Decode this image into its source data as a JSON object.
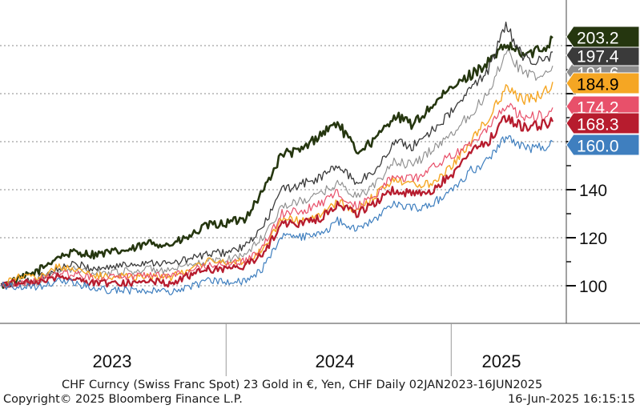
{
  "chart_data": {
    "type": "line",
    "x_range": [
      "2023-01-02",
      "2025-06-16"
    ],
    "ylim": [
      88,
      215
    ],
    "y_ticks": [
      100,
      120,
      140
    ],
    "y_tick_labels": [
      "100",
      "120",
      "140"
    ],
    "grid": true,
    "x_year_labels": [
      "2023",
      "2024",
      "2025"
    ],
    "series": [
      {
        "color": "#25360f",
        "last_value_label": "203.2",
        "points": [
          [
            "2023-01-02",
            100
          ],
          [
            "2023-02-01",
            103
          ],
          [
            "2023-03-01",
            106
          ],
          [
            "2023-04-03",
            112
          ],
          [
            "2023-05-02",
            114
          ],
          [
            "2023-06-01",
            113
          ],
          [
            "2023-07-03",
            114
          ],
          [
            "2023-08-01",
            115
          ],
          [
            "2023-09-01",
            118
          ],
          [
            "2023-10-02",
            117
          ],
          [
            "2023-11-01",
            120
          ],
          [
            "2023-12-01",
            125
          ],
          [
            "2024-01-02",
            126
          ],
          [
            "2024-02-01",
            128
          ],
          [
            "2024-03-01",
            139
          ],
          [
            "2024-04-02",
            155
          ],
          [
            "2024-05-01",
            156
          ],
          [
            "2024-06-03",
            163
          ],
          [
            "2024-07-01",
            168
          ],
          [
            "2024-08-01",
            156
          ],
          [
            "2024-09-02",
            161
          ],
          [
            "2024-10-01",
            171
          ],
          [
            "2024-11-01",
            167
          ],
          [
            "2024-12-02",
            175
          ],
          [
            "2025-01-02",
            182
          ],
          [
            "2025-02-03",
            188
          ],
          [
            "2025-03-03",
            193
          ],
          [
            "2025-04-01",
            200
          ],
          [
            "2025-05-01",
            196
          ],
          [
            "2025-06-02",
            199
          ],
          [
            "2025-06-16",
            203.2
          ]
        ]
      },
      {
        "color": "#3a3a3a",
        "last_value_label": "197.4",
        "points": [
          [
            "2023-01-02",
            100
          ],
          [
            "2023-02-01",
            101
          ],
          [
            "2023-03-01",
            103
          ],
          [
            "2023-04-03",
            107
          ],
          [
            "2023-05-02",
            109
          ],
          [
            "2023-06-01",
            107
          ],
          [
            "2023-07-03",
            108
          ],
          [
            "2023-08-01",
            109
          ],
          [
            "2023-09-01",
            110
          ],
          [
            "2023-10-02",
            109
          ],
          [
            "2023-11-01",
            111
          ],
          [
            "2023-12-01",
            113
          ],
          [
            "2024-01-02",
            114
          ],
          [
            "2024-02-01",
            116
          ],
          [
            "2024-03-01",
            124
          ],
          [
            "2024-04-02",
            140
          ],
          [
            "2024-05-01",
            142
          ],
          [
            "2024-06-03",
            145
          ],
          [
            "2024-07-01",
            150
          ],
          [
            "2024-08-01",
            143
          ],
          [
            "2024-09-02",
            148
          ],
          [
            "2024-10-01",
            160
          ],
          [
            "2024-11-01",
            158
          ],
          [
            "2024-12-02",
            165
          ],
          [
            "2025-01-02",
            172
          ],
          [
            "2025-02-03",
            182
          ],
          [
            "2025-03-03",
            190
          ],
          [
            "2025-04-01",
            208
          ],
          [
            "2025-05-01",
            195
          ],
          [
            "2025-06-02",
            193
          ],
          [
            "2025-06-16",
            197.4
          ]
        ]
      },
      {
        "color": "#8c8c8c",
        "last_value_label": "191.6",
        "points": [
          [
            "2023-01-02",
            100
          ],
          [
            "2023-02-01",
            101
          ],
          [
            "2023-03-01",
            102
          ],
          [
            "2023-04-03",
            106
          ],
          [
            "2023-05-02",
            107
          ],
          [
            "2023-06-01",
            105
          ],
          [
            "2023-07-03",
            106
          ],
          [
            "2023-08-01",
            106
          ],
          [
            "2023-09-01",
            107
          ],
          [
            "2023-10-02",
            106
          ],
          [
            "2023-11-01",
            108
          ],
          [
            "2023-12-01",
            110
          ],
          [
            "2024-01-02",
            111
          ],
          [
            "2024-02-01",
            113
          ],
          [
            "2024-03-01",
            120
          ],
          [
            "2024-04-02",
            133
          ],
          [
            "2024-05-01",
            135
          ],
          [
            "2024-06-03",
            138
          ],
          [
            "2024-07-01",
            143
          ],
          [
            "2024-08-01",
            137
          ],
          [
            "2024-09-02",
            142
          ],
          [
            "2024-10-01",
            152
          ],
          [
            "2024-11-01",
            150
          ],
          [
            "2024-12-02",
            157
          ],
          [
            "2025-01-02",
            163
          ],
          [
            "2025-02-03",
            172
          ],
          [
            "2025-03-03",
            180
          ],
          [
            "2025-04-01",
            198
          ],
          [
            "2025-05-01",
            188
          ],
          [
            "2025-06-02",
            187
          ],
          [
            "2025-06-16",
            191.6
          ]
        ]
      },
      {
        "color": "#f5a623",
        "last_value_label": "184.9",
        "points": [
          [
            "2023-01-02",
            100
          ],
          [
            "2023-02-01",
            104
          ],
          [
            "2023-03-01",
            103
          ],
          [
            "2023-04-03",
            108
          ],
          [
            "2023-05-02",
            107
          ],
          [
            "2023-06-01",
            104
          ],
          [
            "2023-07-03",
            104
          ],
          [
            "2023-08-01",
            104
          ],
          [
            "2023-09-01",
            104
          ],
          [
            "2023-10-02",
            103
          ],
          [
            "2023-11-01",
            107
          ],
          [
            "2023-12-01",
            110
          ],
          [
            "2024-01-02",
            110
          ],
          [
            "2024-02-01",
            110
          ],
          [
            "2024-03-01",
            115
          ],
          [
            "2024-04-02",
            128
          ],
          [
            "2024-05-01",
            127
          ],
          [
            "2024-06-03",
            129
          ],
          [
            "2024-07-01",
            135
          ],
          [
            "2024-08-01",
            131
          ],
          [
            "2024-09-02",
            138
          ],
          [
            "2024-10-01",
            145
          ],
          [
            "2024-11-01",
            142
          ],
          [
            "2024-12-02",
            143
          ],
          [
            "2025-01-02",
            150
          ],
          [
            "2025-02-03",
            160
          ],
          [
            "2025-03-03",
            170
          ],
          [
            "2025-04-01",
            182
          ],
          [
            "2025-05-01",
            177
          ],
          [
            "2025-06-02",
            180
          ],
          [
            "2025-06-16",
            184.9
          ]
        ]
      },
      {
        "color": "#e8506a",
        "last_value_label": "174.2",
        "points": [
          [
            "2023-01-02",
            100
          ],
          [
            "2023-02-01",
            101
          ],
          [
            "2023-03-01",
            102
          ],
          [
            "2023-04-03",
            105
          ],
          [
            "2023-05-02",
            105
          ],
          [
            "2023-06-01",
            103
          ],
          [
            "2023-07-03",
            104
          ],
          [
            "2023-08-01",
            104
          ],
          [
            "2023-09-01",
            105
          ],
          [
            "2023-10-02",
            104
          ],
          [
            "2023-11-01",
            106
          ],
          [
            "2023-12-01",
            108
          ],
          [
            "2024-01-02",
            109
          ],
          [
            "2024-02-01",
            110
          ],
          [
            "2024-03-01",
            116
          ],
          [
            "2024-04-02",
            130
          ],
          [
            "2024-05-01",
            131
          ],
          [
            "2024-06-03",
            134
          ],
          [
            "2024-07-01",
            139
          ],
          [
            "2024-08-01",
            133
          ],
          [
            "2024-09-02",
            138
          ],
          [
            "2024-10-01",
            146
          ],
          [
            "2024-11-01",
            144
          ],
          [
            "2024-12-02",
            149
          ],
          [
            "2025-01-02",
            154
          ],
          [
            "2025-02-03",
            160
          ],
          [
            "2025-03-03",
            165
          ],
          [
            "2025-04-01",
            175
          ],
          [
            "2025-05-01",
            170
          ],
          [
            "2025-06-02",
            171
          ],
          [
            "2025-06-16",
            174.2
          ]
        ]
      },
      {
        "color": "#b71c2e",
        "last_value_label": "168.3",
        "points": [
          [
            "2023-01-02",
            100
          ],
          [
            "2023-02-01",
            102
          ],
          [
            "2023-03-01",
            101
          ],
          [
            "2023-04-03",
            104
          ],
          [
            "2023-05-02",
            103
          ],
          [
            "2023-06-01",
            101
          ],
          [
            "2023-07-03",
            101
          ],
          [
            "2023-08-01",
            101
          ],
          [
            "2023-09-01",
            102
          ],
          [
            "2023-10-02",
            101
          ],
          [
            "2023-11-01",
            104
          ],
          [
            "2023-12-01",
            107
          ],
          [
            "2024-01-02",
            107
          ],
          [
            "2024-02-01",
            108
          ],
          [
            "2024-03-01",
            113
          ],
          [
            "2024-04-02",
            126
          ],
          [
            "2024-05-01",
            126
          ],
          [
            "2024-06-03",
            128
          ],
          [
            "2024-07-01",
            134
          ],
          [
            "2024-08-01",
            130
          ],
          [
            "2024-09-02",
            135
          ],
          [
            "2024-10-01",
            140
          ],
          [
            "2024-11-01",
            138
          ],
          [
            "2024-12-02",
            140
          ],
          [
            "2025-01-02",
            146
          ],
          [
            "2025-02-03",
            156
          ],
          [
            "2025-03-03",
            160
          ],
          [
            "2025-04-01",
            170
          ],
          [
            "2025-05-01",
            166
          ],
          [
            "2025-06-02",
            167
          ],
          [
            "2025-06-16",
            168.3
          ]
        ]
      },
      {
        "color": "#3f7fbf",
        "last_value_label": "160.0",
        "points": [
          [
            "2023-01-02",
            100
          ],
          [
            "2023-02-01",
            100
          ],
          [
            "2023-03-01",
            99
          ],
          [
            "2023-04-03",
            102
          ],
          [
            "2023-05-02",
            101
          ],
          [
            "2023-06-01",
            99
          ],
          [
            "2023-07-03",
            98
          ],
          [
            "2023-08-01",
            98
          ],
          [
            "2023-09-01",
            98
          ],
          [
            "2023-10-02",
            97
          ],
          [
            "2023-11-01",
            99
          ],
          [
            "2023-12-01",
            102
          ],
          [
            "2024-01-02",
            102
          ],
          [
            "2024-02-01",
            102
          ],
          [
            "2024-03-01",
            107
          ],
          [
            "2024-04-02",
            121
          ],
          [
            "2024-05-01",
            120
          ],
          [
            "2024-06-03",
            121
          ],
          [
            "2024-07-01",
            127
          ],
          [
            "2024-08-01",
            123
          ],
          [
            "2024-09-02",
            128
          ],
          [
            "2024-10-01",
            135
          ],
          [
            "2024-11-01",
            132
          ],
          [
            "2024-12-02",
            134
          ],
          [
            "2025-01-02",
            140
          ],
          [
            "2025-02-03",
            148
          ],
          [
            "2025-03-03",
            152
          ],
          [
            "2025-04-01",
            162
          ],
          [
            "2025-05-01",
            157
          ],
          [
            "2025-06-02",
            158
          ],
          [
            "2025-06-16",
            160.0
          ]
        ]
      }
    ]
  },
  "footer": {
    "description": "CHF Curncy (Swiss Franc Spot) 23 Gold in €, Yen, CHF  Daily 02JAN2023-16JUN2025",
    "copyright": "Copyright© 2025 Bloomberg Finance L.P.",
    "timestamp": "16-Jun-2025 16:15:15"
  }
}
